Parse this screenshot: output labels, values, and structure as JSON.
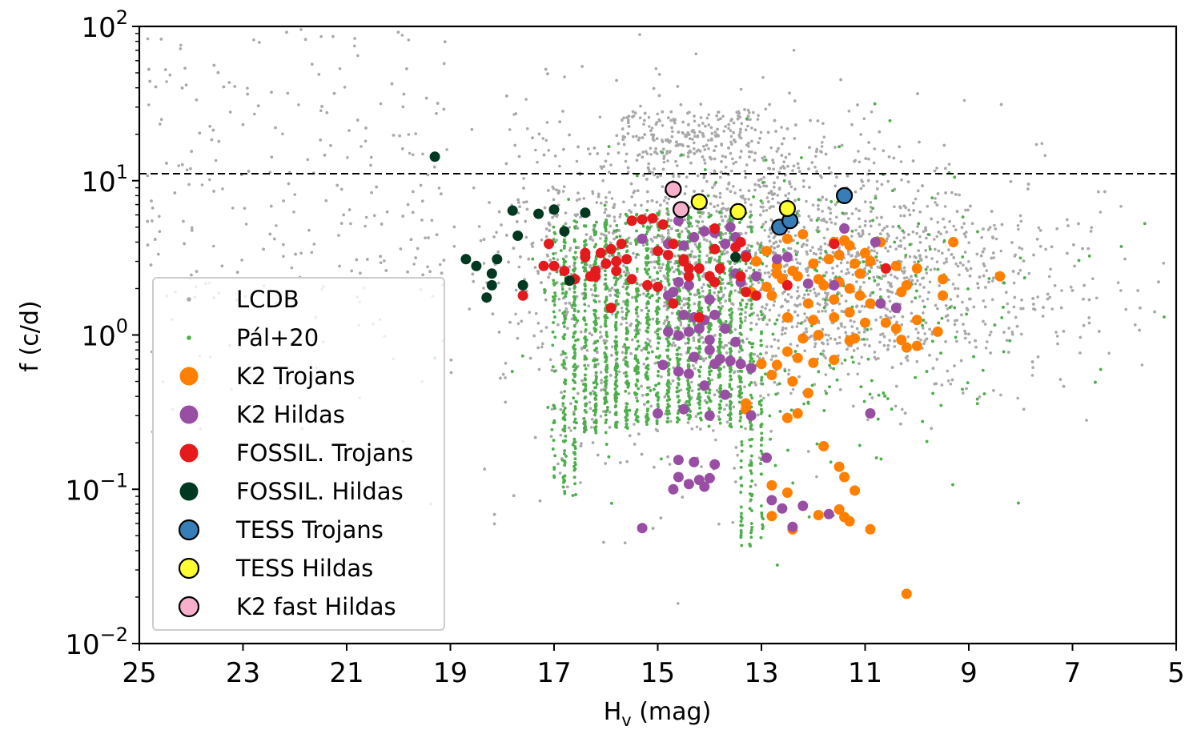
{
  "chart_data": {
    "type": "scatter",
    "xlabel_main": "H",
    "xlabel_sub": "v",
    "xlabel_rest": " (mag)",
    "ylabel": "f (c/d)",
    "xlim": [
      25,
      5
    ],
    "x_inverted": true,
    "ylim": [
      0.01,
      100
    ],
    "yscale": "log",
    "x_ticks": [
      "25",
      "23",
      "21",
      "19",
      "17",
      "15",
      "13",
      "11",
      "9",
      "7",
      "5"
    ],
    "x_tick_values": [
      25,
      23,
      21,
      19,
      17,
      15,
      13,
      11,
      9,
      7,
      5
    ],
    "y_ticks": [
      {
        "value": 100,
        "base": "10",
        "exp": "2"
      },
      {
        "value": 10,
        "base": "10",
        "exp": "1"
      },
      {
        "value": 1,
        "base": "10",
        "exp": "0"
      },
      {
        "value": 0.1,
        "base": "10",
        "exp": "−1"
      },
      {
        "value": 0.01,
        "base": "10",
        "exp": "−2"
      }
    ],
    "hline": {
      "y": 11.1,
      "style": "dashed",
      "color": "#000000"
    },
    "legend_position": "lower-left",
    "series": [
      {
        "name": "LCDB",
        "color": "#a9a9a9",
        "marker": "small-dot",
        "edge": false,
        "kind": "background"
      },
      {
        "name": "Pál+20",
        "color": "#4daf4a",
        "marker": "small-dot",
        "edge": false,
        "kind": "background"
      },
      {
        "name": "K2 Trojans",
        "color": "#ff7f00",
        "marker": "circle",
        "edge": false,
        "points": [
          [
            12.2,
            4.5
          ],
          [
            12.5,
            4.2
          ],
          [
            12.9,
            3.5
          ],
          [
            13.1,
            3.0
          ],
          [
            12.7,
            2.8
          ],
          [
            12.4,
            2.6
          ],
          [
            12.0,
            2.9
          ],
          [
            11.7,
            3.1
          ],
          [
            11.5,
            3.3
          ],
          [
            11.2,
            2.9
          ],
          [
            11.0,
            3.4
          ],
          [
            10.9,
            3.0
          ],
          [
            11.6,
            4.0
          ],
          [
            11.4,
            4.1
          ],
          [
            11.3,
            3.8
          ],
          [
            11.1,
            2.5
          ],
          [
            10.6,
            2.7
          ],
          [
            10.4,
            2.8
          ],
          [
            10.0,
            2.7
          ],
          [
            9.5,
            2.3
          ],
          [
            9.3,
            4.0
          ],
          [
            8.4,
            2.4
          ],
          [
            12.6,
            2.3
          ],
          [
            12.3,
            2.4
          ],
          [
            11.9,
            2.3
          ],
          [
            11.8,
            2.1
          ],
          [
            11.5,
            2.2
          ],
          [
            11.3,
            2.0
          ],
          [
            12.8,
            1.8
          ],
          [
            13.2,
            1.9
          ],
          [
            12.1,
            1.6
          ],
          [
            11.6,
            1.7
          ],
          [
            11.1,
            1.8
          ],
          [
            10.9,
            1.6
          ],
          [
            10.3,
            1.9
          ],
          [
            10.2,
            2.1
          ],
          [
            9.5,
            1.8
          ],
          [
            12.5,
            1.3
          ],
          [
            12.0,
            1.25
          ],
          [
            11.6,
            1.3
          ],
          [
            11.3,
            1.4
          ],
          [
            11.0,
            1.2
          ],
          [
            10.6,
            1.2
          ],
          [
            10.4,
            1.1
          ],
          [
            10.0,
            1.25
          ],
          [
            9.6,
            1.05
          ],
          [
            10.3,
            0.93
          ],
          [
            10.2,
            0.83
          ],
          [
            10.0,
            0.85
          ],
          [
            11.3,
            0.92
          ],
          [
            11.2,
            0.95
          ],
          [
            11.9,
            1.0
          ],
          [
            12.2,
            0.95
          ],
          [
            13.0,
            0.65
          ],
          [
            12.7,
            0.64
          ],
          [
            12.5,
            0.78
          ],
          [
            12.3,
            0.71
          ],
          [
            12.0,
            0.66
          ],
          [
            11.6,
            0.69
          ],
          [
            12.8,
            0.55
          ],
          [
            13.3,
            0.36
          ],
          [
            13.3,
            0.33
          ],
          [
            12.4,
            0.5
          ],
          [
            12.1,
            0.42
          ],
          [
            12.5,
            0.29
          ],
          [
            12.3,
            0.31
          ],
          [
            11.8,
            0.19
          ],
          [
            11.5,
            0.14
          ],
          [
            11.4,
            0.12
          ],
          [
            12.8,
            0.106
          ],
          [
            12.5,
            0.095
          ],
          [
            11.9,
            0.068
          ],
          [
            11.5,
            0.074
          ],
          [
            11.4,
            0.066
          ],
          [
            11.3,
            0.062
          ],
          [
            12.8,
            0.067
          ],
          [
            12.4,
            0.055
          ],
          [
            10.9,
            0.055
          ],
          [
            11.2,
            0.098
          ],
          [
            10.2,
            0.021
          ],
          [
            12.9,
            2.05
          ],
          [
            12.7,
            2.5
          ],
          [
            10.7,
            4.0
          ]
        ]
      },
      {
        "name": "K2 Hildas",
        "color": "#984ea3",
        "marker": "circle",
        "edge": false,
        "points": [
          [
            14.6,
            5.5
          ],
          [
            14.1,
            4.7
          ],
          [
            13.9,
            4.6
          ],
          [
            13.6,
            5.0
          ],
          [
            13.5,
            4.3
          ],
          [
            13.7,
            3.9
          ],
          [
            14.3,
            4.3
          ],
          [
            14.5,
            3.8
          ],
          [
            14.8,
            3.9
          ],
          [
            15.3,
            4.2
          ],
          [
            13.3,
            3.3
          ],
          [
            12.7,
            3.1
          ],
          [
            12.5,
            3.2
          ],
          [
            13.1,
            2.4
          ],
          [
            13.5,
            2.5
          ],
          [
            13.4,
            2.2
          ],
          [
            14.4,
            2.1
          ],
          [
            14.6,
            2.2
          ],
          [
            14.7,
            1.9
          ],
          [
            14.0,
            1.7
          ],
          [
            12.1,
            2.15
          ],
          [
            11.6,
            2.1
          ],
          [
            10.8,
            4.0
          ],
          [
            10.7,
            1.6
          ],
          [
            10.4,
            1.5
          ],
          [
            11.4,
            4.9
          ],
          [
            14.8,
            1.8
          ],
          [
            14.5,
            1.35
          ],
          [
            14.3,
            1.3
          ],
          [
            14.1,
            1.25
          ],
          [
            13.9,
            1.35
          ],
          [
            13.7,
            1.1
          ],
          [
            14.4,
            1.05
          ],
          [
            14.2,
            1.1
          ],
          [
            14.8,
            1.05
          ],
          [
            14.6,
            0.99
          ],
          [
            14.0,
            0.93
          ],
          [
            13.5,
            0.9
          ],
          [
            14.0,
            0.8
          ],
          [
            13.8,
            0.7
          ],
          [
            13.9,
            0.65
          ],
          [
            13.6,
            0.68
          ],
          [
            14.3,
            0.72
          ],
          [
            14.6,
            0.58
          ],
          [
            14.4,
            0.56
          ],
          [
            13.4,
            0.65
          ],
          [
            13.2,
            0.61
          ],
          [
            14.9,
            0.64
          ],
          [
            14.1,
            0.47
          ],
          [
            13.7,
            0.41
          ],
          [
            14.5,
            0.33
          ],
          [
            14.0,
            0.3
          ],
          [
            15.0,
            0.31
          ],
          [
            13.2,
            0.3
          ],
          [
            10.9,
            0.31
          ],
          [
            14.6,
            0.155
          ],
          [
            14.3,
            0.15
          ],
          [
            13.9,
            0.145
          ],
          [
            14.6,
            0.12
          ],
          [
            14.2,
            0.115
          ],
          [
            14.4,
            0.108
          ],
          [
            14.0,
            0.118
          ],
          [
            14.1,
            0.104
          ],
          [
            14.7,
            0.1
          ],
          [
            12.9,
            0.16
          ],
          [
            12.8,
            0.085
          ],
          [
            12.6,
            0.075
          ],
          [
            12.2,
            0.078
          ],
          [
            12.4,
            0.057
          ],
          [
            15.3,
            0.056
          ],
          [
            11.7,
            0.069
          ]
        ]
      },
      {
        "name": "FOSSIL. Trojans",
        "color": "#e41a1c",
        "marker": "circle",
        "edge": false,
        "points": [
          [
            17.1,
            3.9
          ],
          [
            17.0,
            2.8
          ],
          [
            17.2,
            2.8
          ],
          [
            16.8,
            2.6
          ],
          [
            16.6,
            2.3
          ],
          [
            16.3,
            2.4
          ],
          [
            16.4,
            3.2
          ],
          [
            16.1,
            3.4
          ],
          [
            15.9,
            3.6
          ],
          [
            15.8,
            3.0
          ],
          [
            15.6,
            3.1
          ],
          [
            16.0,
            2.9
          ],
          [
            15.8,
            2.6
          ],
          [
            15.5,
            2.3
          ],
          [
            16.2,
            2.4
          ],
          [
            15.7,
            3.9
          ],
          [
            15.3,
            5.6
          ],
          [
            15.5,
            5.5
          ],
          [
            15.1,
            5.7
          ],
          [
            14.9,
            5.2
          ],
          [
            15.0,
            3.5
          ],
          [
            14.7,
            3.9
          ],
          [
            14.5,
            3.1
          ],
          [
            14.4,
            2.7
          ],
          [
            14.8,
            3.3
          ],
          [
            14.5,
            3.0
          ],
          [
            14.2,
            2.7
          ],
          [
            14.0,
            2.4
          ],
          [
            13.9,
            2.2
          ],
          [
            14.4,
            2.4
          ],
          [
            13.8,
            2.7
          ],
          [
            13.9,
            3.6
          ],
          [
            13.5,
            3.7
          ],
          [
            13.4,
            4.0
          ],
          [
            13.3,
            3.2
          ],
          [
            13.4,
            2.4
          ],
          [
            13.3,
            1.9
          ],
          [
            13.1,
            1.8
          ],
          [
            12.5,
            2.1
          ],
          [
            11.6,
            3.9
          ],
          [
            10.6,
            2.7
          ],
          [
            15.9,
            1.5
          ],
          [
            14.7,
            1.6
          ],
          [
            14.2,
            1.3
          ],
          [
            17.6,
            1.8
          ],
          [
            15.2,
            2.1
          ],
          [
            15.0,
            2.05
          ],
          [
            16.4,
            3.4
          ],
          [
            16.2,
            2.6
          ],
          [
            13.9,
            4.9
          ]
        ]
      },
      {
        "name": "FOSSIL. Hildas",
        "color": "#00391f",
        "marker": "circle",
        "edge": false,
        "points": [
          [
            19.3,
            14.3
          ],
          [
            17.8,
            6.4
          ],
          [
            17.3,
            6.1
          ],
          [
            17.0,
            6.5
          ],
          [
            16.4,
            6.2
          ],
          [
            16.8,
            4.7
          ],
          [
            17.7,
            4.4
          ],
          [
            18.7,
            3.1
          ],
          [
            18.5,
            2.8
          ],
          [
            18.2,
            2.5
          ],
          [
            18.1,
            3.1
          ],
          [
            18.2,
            2.1
          ],
          [
            18.3,
            1.75
          ],
          [
            17.6,
            2.1
          ],
          [
            16.7,
            2.25
          ],
          [
            13.5,
            3.2
          ]
        ]
      },
      {
        "name": "TESS Trojans",
        "color": "#377eb8",
        "marker": "circle",
        "edge": true,
        "points": [
          [
            12.65,
            5.0
          ],
          [
            12.45,
            5.5
          ],
          [
            11.4,
            8.0
          ]
        ]
      },
      {
        "name": "TESS Hildas",
        "color": "#ffff33",
        "marker": "circle",
        "edge": true,
        "points": [
          [
            14.2,
            7.3
          ],
          [
            13.45,
            6.3
          ],
          [
            12.5,
            6.6
          ]
        ]
      },
      {
        "name": "K2 fast Hildas",
        "color": "#f6b0cb",
        "marker": "circle",
        "edge": true,
        "points": [
          [
            14.7,
            8.8
          ],
          [
            14.55,
            6.5
          ]
        ]
      }
    ]
  }
}
